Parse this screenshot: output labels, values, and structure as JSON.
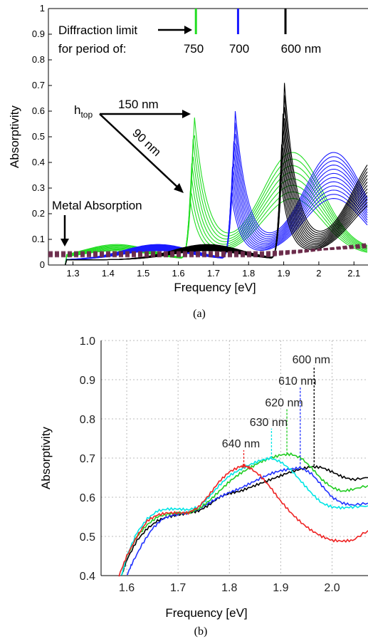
{
  "chart_data": [
    {
      "type": "line",
      "caption": "(a)",
      "xlabel": "Frequency [eV]",
      "ylabel": "Absorptivity",
      "xlim": [
        1.23,
        2.14
      ],
      "ylim": [
        0,
        1
      ],
      "x_ticks": [
        "1.3",
        "1.4",
        "1.5",
        "1.6",
        "1.7",
        "1.8",
        "1.9",
        "2",
        "2.1"
      ],
      "y_ticks": [
        "0",
        "0.1",
        "0.2",
        "0.3",
        "0.4",
        "0.5",
        "0.6",
        "0.7",
        "0.8",
        "0.9",
        "1"
      ],
      "grid": false,
      "diffraction_limits": [
        {
          "label": "750",
          "x": 1.65,
          "color": "#22dd22"
        },
        {
          "label": "700",
          "x": 1.77,
          "color": "#1a1aff"
        },
        {
          "label": "600 nm",
          "x": 1.905,
          "color": "#000000"
        }
      ],
      "annotations": {
        "diffraction_line1": "Diffraction limit",
        "diffraction_line2": "for period of:",
        "htop_main": "h",
        "htop_sub": "top",
        "h150": "150 nm",
        "h90": "90 nm",
        "metal": "Metal Absorption"
      },
      "families": [
        {
          "color": "#22dd22",
          "period": "750",
          "peak_x": 1.645,
          "peak_min": 0.26,
          "peak_max": 0.59,
          "count": 8
        },
        {
          "color": "#1a1aff",
          "period": "700",
          "peak_x": 1.762,
          "peak_min": 0.28,
          "peak_max": 0.6,
          "count": 12
        },
        {
          "color": "#000000",
          "period": "600 nm",
          "peak_x": 1.902,
          "peak_min": 0.35,
          "peak_max": 0.71,
          "count": 13
        },
        {
          "color": "#6b2a4a",
          "period": "metal",
          "dashed": true,
          "level": 0.05,
          "count": 5
        }
      ]
    },
    {
      "type": "line",
      "caption": "(b)",
      "xlabel": "Frequency [eV]",
      "ylabel": "Absorptivity",
      "xlim": [
        1.55,
        2.07
      ],
      "ylim": [
        0.4,
        1.0
      ],
      "x_ticks": [
        "1.6",
        "1.7",
        "1.8",
        "1.9",
        "2.0"
      ],
      "y_ticks": [
        "0.4",
        "0.5",
        "0.6",
        "0.7",
        "0.8",
        "0.9",
        "1.0"
      ],
      "grid": true,
      "series": [
        {
          "name": "600 nm",
          "color": "#000000",
          "peak_x": 1.965,
          "peak_y": 0.68,
          "x": [
            1.59,
            1.6,
            1.62,
            1.64,
            1.66,
            1.68,
            1.7,
            1.72,
            1.74,
            1.76,
            1.78,
            1.8,
            1.82,
            1.84,
            1.86,
            1.88,
            1.9,
            1.92,
            1.94,
            1.96,
            1.98,
            2.0,
            2.02,
            2.04,
            2.07
          ],
          "y": [
            0.4,
            0.44,
            0.49,
            0.52,
            0.54,
            0.55,
            0.555,
            0.56,
            0.565,
            0.58,
            0.6,
            0.61,
            0.615,
            0.625,
            0.635,
            0.645,
            0.655,
            0.665,
            0.672,
            0.678,
            0.676,
            0.665,
            0.652,
            0.645,
            0.65
          ]
        },
        {
          "name": "610 nm",
          "color": "#2233ff",
          "peak_x": 1.938,
          "peak_y": 0.675,
          "x": [
            1.6,
            1.61,
            1.63,
            1.65,
            1.67,
            1.69,
            1.7,
            1.72,
            1.74,
            1.76,
            1.78,
            1.8,
            1.82,
            1.84,
            1.86,
            1.88,
            1.9,
            1.92,
            1.94,
            1.96,
            1.98,
            2.0,
            2.02,
            2.04,
            2.07
          ],
          "y": [
            0.4,
            0.43,
            0.48,
            0.52,
            0.545,
            0.555,
            0.557,
            0.56,
            0.57,
            0.585,
            0.6,
            0.612,
            0.622,
            0.635,
            0.648,
            0.66,
            0.668,
            0.672,
            0.675,
            0.66,
            0.63,
            0.6,
            0.585,
            0.58,
            0.585
          ]
        },
        {
          "name": "620 nm",
          "color": "#22cc22",
          "peak_x": 1.912,
          "peak_y": 0.71,
          "x": [
            1.59,
            1.6,
            1.62,
            1.64,
            1.66,
            1.68,
            1.7,
            1.72,
            1.74,
            1.76,
            1.78,
            1.8,
            1.82,
            1.84,
            1.86,
            1.88,
            1.9,
            1.92,
            1.94,
            1.96,
            1.98,
            2.0,
            2.02,
            2.04,
            2.07
          ],
          "y": [
            0.4,
            0.45,
            0.5,
            0.53,
            0.55,
            0.557,
            0.56,
            0.56,
            0.57,
            0.59,
            0.615,
            0.64,
            0.66,
            0.675,
            0.69,
            0.7,
            0.708,
            0.71,
            0.7,
            0.675,
            0.645,
            0.625,
            0.615,
            0.62,
            0.63
          ]
        },
        {
          "name": "630 nm",
          "color": "#00e5e5",
          "peak_x": 1.882,
          "peak_y": 0.7,
          "x": [
            1.59,
            1.6,
            1.62,
            1.64,
            1.66,
            1.68,
            1.7,
            1.72,
            1.74,
            1.76,
            1.78,
            1.8,
            1.82,
            1.84,
            1.86,
            1.88,
            1.9,
            1.92,
            1.94,
            1.96,
            1.98,
            2.0,
            2.02,
            2.04,
            2.07
          ],
          "y": [
            0.4,
            0.45,
            0.51,
            0.545,
            0.565,
            0.57,
            0.57,
            0.568,
            0.575,
            0.6,
            0.63,
            0.655,
            0.67,
            0.683,
            0.694,
            0.7,
            0.69,
            0.67,
            0.64,
            0.61,
            0.585,
            0.575,
            0.573,
            0.575,
            0.578
          ]
        },
        {
          "name": "640 nm",
          "color": "#ee2222",
          "peak_x": 1.828,
          "peak_y": 0.68,
          "x": [
            1.585,
            1.6,
            1.62,
            1.64,
            1.66,
            1.68,
            1.7,
            1.72,
            1.74,
            1.76,
            1.78,
            1.8,
            1.82,
            1.83,
            1.84,
            1.86,
            1.88,
            1.9,
            1.92,
            1.94,
            1.96,
            1.98,
            2.0,
            2.02,
            2.04,
            2.07
          ],
          "y": [
            0.4,
            0.45,
            0.5,
            0.54,
            0.555,
            0.56,
            0.56,
            0.56,
            0.575,
            0.605,
            0.64,
            0.665,
            0.678,
            0.68,
            0.675,
            0.655,
            0.625,
            0.59,
            0.56,
            0.535,
            0.515,
            0.5,
            0.49,
            0.488,
            0.49,
            0.515
          ]
        }
      ]
    }
  ]
}
